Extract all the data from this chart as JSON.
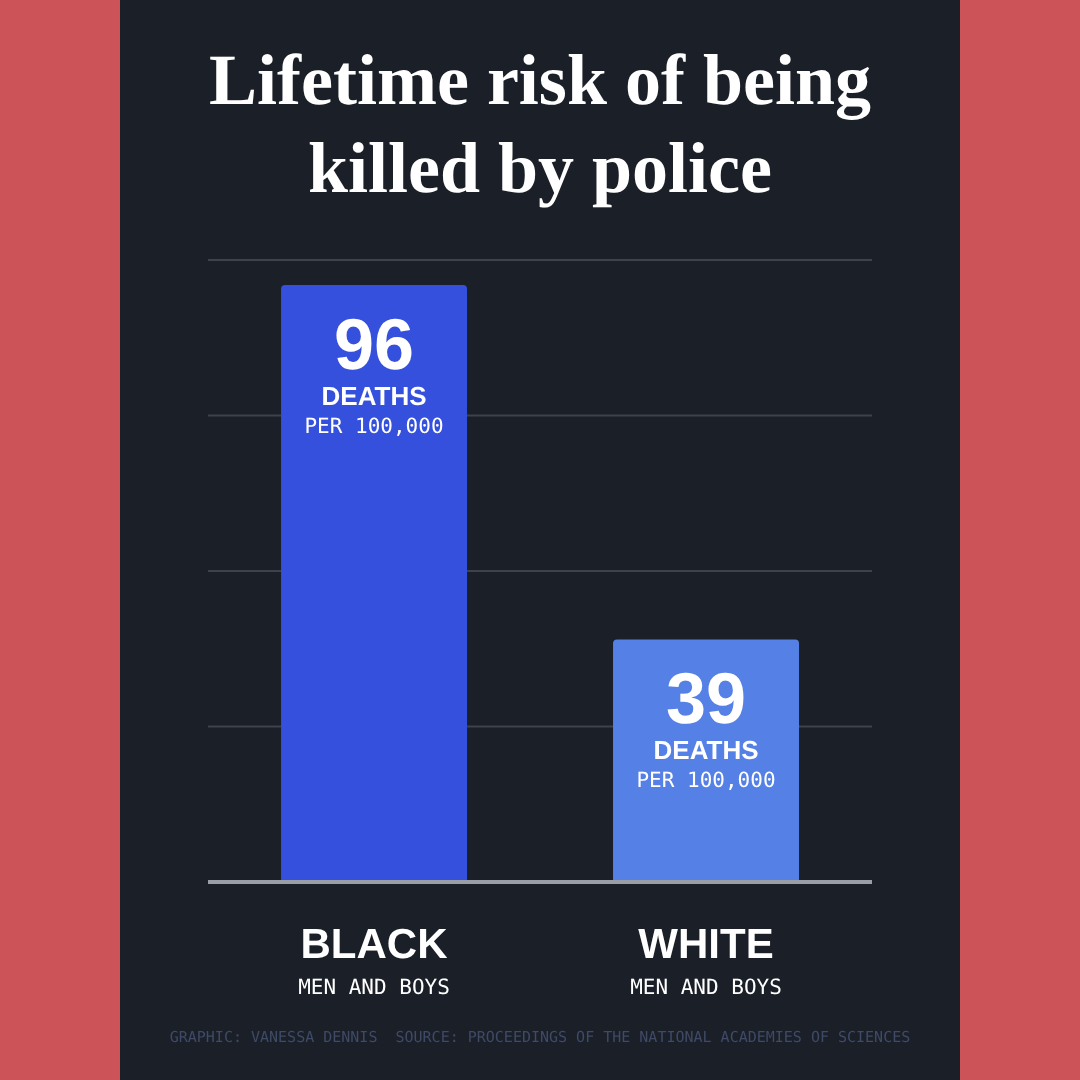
{
  "chart_data": {
    "type": "bar",
    "title": "Lifetime risk of being killed by police",
    "categories": [
      "BLACK\nMEN AND BOYS",
      "WHITE\nMEN AND BOYS"
    ],
    "values": [
      96,
      39
    ],
    "value_labels": [
      "96\nDEATHS\nPER 100,000",
      "39\nDEATHS\nPER 100,000"
    ],
    "colors": [
      "#3450dc",
      "#5580e6"
    ],
    "ylim": [
      0,
      100
    ],
    "yticks": [
      {
        "value": 0,
        "label": null
      },
      {
        "value": 25,
        "label": null
      },
      {
        "value": 50,
        "label": null
      },
      {
        "value": 75,
        "label": null
      },
      {
        "value": 100,
        "label": null
      }
    ],
    "grid": "y",
    "tick_labels": "x",
    "annotations": [
      "GRAPHIC: VANESSA DENNIS  SOURCE: PROCEEDINGS OF THE NATIONAL ACADEMIES OF SCIENCES"
    ]
  }
}
